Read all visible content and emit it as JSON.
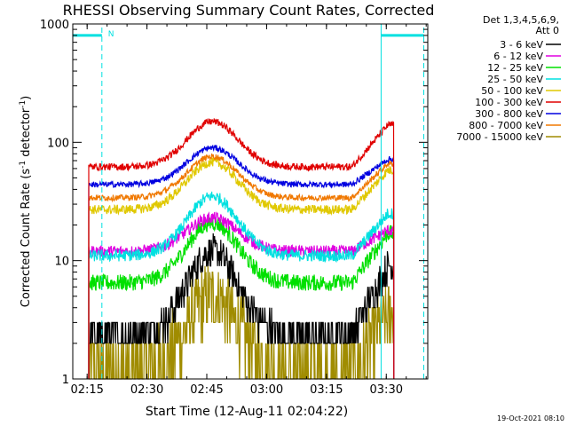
{
  "chart_data": {
    "type": "line",
    "title": "RHESSI Observing Summary Count Rates, Corrected",
    "xlabel": "Start Time (12-Aug-11 02:04:22)",
    "ylabel_main": "Corrected Count Rate (s",
    "ylabel_sup1": "-1",
    "ylabel_mid": " detector",
    "ylabel_sup2": "-1",
    "ylabel_end": ")",
    "yscale": "log",
    "ylim": [
      1,
      1000
    ],
    "xlim_minutes": [
      7,
      96
    ],
    "x_ticks": [
      {
        "label": "02:15",
        "minutes": 10.6
      },
      {
        "label": "02:30",
        "minutes": 25.6
      },
      {
        "label": "02:45",
        "minutes": 40.6
      },
      {
        "label": "03:00",
        "minutes": 55.6
      },
      {
        "label": "03:15",
        "minutes": 70.6
      },
      {
        "label": "03:30",
        "minutes": 85.6
      }
    ],
    "y_ticks": [
      {
        "label": "1",
        "value": 1
      },
      {
        "label": "10",
        "value": 10
      },
      {
        "label": "100",
        "value": 100
      },
      {
        "label": "1000",
        "value": 1000
      }
    ],
    "legend_header": [
      "Det 1,3,4,5,6,9,",
      "Att 0"
    ],
    "footer_date": "19-Oct-2021 08:10",
    "data_start_minutes": 11,
    "data_end_minutes": 87.5,
    "series": [
      {
        "name": "3 - 6 keV",
        "color": "#000000",
        "base": 2.4,
        "peak": 12,
        "end": 9,
        "noise": 0.14
      },
      {
        "name": "6 - 12 keV",
        "color": "#e000e0",
        "base": 12,
        "peak": 23,
        "end": 18,
        "noise": 0.05
      },
      {
        "name": "12 - 25 keV",
        "color": "#00e000",
        "base": 6.5,
        "peak": 21,
        "end": 17,
        "noise": 0.07
      },
      {
        "name": "25 - 50 keV",
        "color": "#00e0e0",
        "base": 11,
        "peak": 35,
        "end": 25,
        "noise": 0.05
      },
      {
        "name": "50 - 100 keV",
        "color": "#e0c800",
        "base": 27,
        "peak": 68,
        "end": 58,
        "noise": 0.04
      },
      {
        "name": "100 - 300 keV",
        "color": "#e00000",
        "base": 62,
        "peak": 150,
        "end": 140,
        "noise": 0.03
      },
      {
        "name": "300 - 800 keV",
        "color": "#0000e0",
        "base": 44,
        "peak": 90,
        "end": 72,
        "noise": 0.025
      },
      {
        "name": "800 - 7000 keV",
        "color": "#f07800",
        "base": 34,
        "peak": 76,
        "end": 66,
        "noise": 0.025
      },
      {
        "name": "7000 - 15000 keV",
        "color": "#a08c00",
        "base": 1.2,
        "peak": 5,
        "end": 3.5,
        "noise": 0.3
      }
    ],
    "attenuator_flag": "N",
    "night_intervals": [
      {
        "start_minutes": 7,
        "end_minutes": 14.3
      },
      {
        "start_minutes": 84.3,
        "end_minutes": 95
      }
    ],
    "night_level": 800
  }
}
